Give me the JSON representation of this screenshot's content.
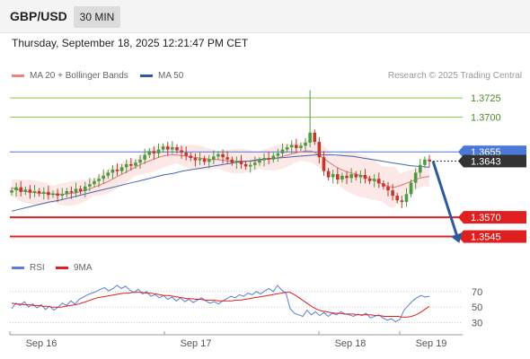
{
  "header": {
    "pair": "GBP/USD",
    "timeframe": "30 MIN"
  },
  "datetime": "Thursday, September 18, 2025 12:21:47 PM CET",
  "legend": [
    {
      "label": "MA 20 + Bollinger Bands",
      "color": "#f08080"
    },
    {
      "label": "MA 50",
      "color": "#2e5a9c"
    }
  ],
  "research": "Research © 2025 Trading Central",
  "rsi_legend": [
    {
      "label": "RSI",
      "color": "#5a7fd6"
    },
    {
      "label": "9MA",
      "color": "#e02020"
    }
  ],
  "colors": {
    "resistance": "#8bc34a",
    "pivot": "#4a78d6",
    "support": "#e02020",
    "current": "#333333",
    "arrow": "#2e5a9c",
    "up_candle": "#4c9a3f",
    "down_candle": "#c0392b"
  },
  "chart_data": [
    {
      "type": "candlestick",
      "title": "",
      "x_labels": [
        "Sep 16",
        "Sep 17",
        "Sep 18",
        "Sep 19"
      ],
      "ylim": [
        1.352,
        1.3745
      ],
      "levels": [
        {
          "value": "1.3725",
          "kind": "resistance"
        },
        {
          "value": "1.3700",
          "kind": "resistance"
        },
        {
          "value": "1.3655",
          "kind": "pivot"
        },
        {
          "value": "1.3643",
          "kind": "current"
        },
        {
          "value": "1.3570",
          "kind": "support"
        },
        {
          "value": "1.3545",
          "kind": "support"
        }
      ],
      "closes": [
        1.3605,
        1.3609,
        1.3603,
        1.3606,
        1.3602,
        1.3604,
        1.3601,
        1.3603,
        1.3599,
        1.3601,
        1.3598,
        1.36,
        1.3604,
        1.3602,
        1.3607,
        1.3604,
        1.361,
        1.3613,
        1.3617,
        1.362,
        1.3624,
        1.3628,
        1.3632,
        1.363,
        1.3635,
        1.3639,
        1.3637,
        1.3641,
        1.3645,
        1.3651,
        1.3656,
        1.3653,
        1.3658,
        1.3662,
        1.3658,
        1.3661,
        1.3657,
        1.3654,
        1.365,
        1.3647,
        1.3644,
        1.3646,
        1.3642,
        1.3645,
        1.3649,
        1.3652,
        1.3648,
        1.3645,
        1.3641,
        1.3643,
        1.3639,
        1.3636,
        1.3638,
        1.3641,
        1.3644,
        1.3647,
        1.3645,
        1.365,
        1.3653,
        1.3658,
        1.3661,
        1.3664,
        1.366,
        1.3663,
        1.3667,
        1.368,
        1.3668,
        1.3648,
        1.363,
        1.3622,
        1.3626,
        1.3619,
        1.3624,
        1.3621,
        1.3626,
        1.3622,
        1.3625,
        1.362,
        1.3617,
        1.362,
        1.3614,
        1.361,
        1.3605,
        1.3598,
        1.3592,
        1.359,
        1.36,
        1.3615,
        1.3628,
        1.3638,
        1.3645,
        1.3643
      ],
      "ma20": [
        1.3608,
        1.3606,
        1.3604,
        1.3603,
        1.3602,
        1.3601,
        1.3601,
        1.36,
        1.36,
        1.36,
        1.3601,
        1.3602,
        1.3604,
        1.3606,
        1.3609,
        1.3612,
        1.3615,
        1.3619,
        1.3623,
        1.3627,
        1.3631,
        1.3635,
        1.3639,
        1.3642,
        1.3645,
        1.3648,
        1.365,
        1.3651,
        1.3651,
        1.365,
        1.3649,
        1.3648,
        1.3647,
        1.3646,
        1.3645,
        1.3645,
        1.3644,
        1.3643,
        1.3643,
        1.3643,
        1.3643,
        1.3643,
        1.3644,
        1.3645,
        1.3646,
        1.3647,
        1.3649,
        1.3651,
        1.3653,
        1.3655,
        1.3656,
        1.3656,
        1.3652,
        1.3647,
        1.3641,
        1.3636,
        1.3632,
        1.3629,
        1.3627,
        1.3625,
        1.3623,
        1.362,
        1.3617,
        1.3613,
        1.361,
        1.3609,
        1.3611,
        1.3614,
        1.3617,
        1.362,
        1.3622,
        1.3623
      ],
      "ma50": [
        1.3578,
        1.3581,
        1.3584,
        1.3587,
        1.359,
        1.3592,
        1.3595,
        1.3598,
        1.3601,
        1.3604,
        1.3607,
        1.361,
        1.3613,
        1.3616,
        1.3619,
        1.3622,
        1.3625,
        1.3627,
        1.363,
        1.3632,
        1.3634,
        1.3636,
        1.3638,
        1.364,
        1.3642,
        1.3643,
        1.3645,
        1.3646,
        1.3647,
        1.3648,
        1.3649,
        1.365,
        1.3651,
        1.3651,
        1.3651,
        1.365,
        1.3649,
        1.3647,
        1.3645,
        1.3643,
        1.3641,
        1.3639,
        1.3637,
        1.3636,
        1.3635
      ]
    },
    {
      "type": "line",
      "title": "",
      "yticks": [
        "70",
        "50",
        "30"
      ],
      "ylim": [
        20,
        85
      ],
      "rsi": [
        48,
        55,
        52,
        57,
        50,
        54,
        49,
        53,
        47,
        51,
        46,
        50,
        55,
        52,
        58,
        54,
        60,
        63,
        66,
        68,
        70,
        73,
        75,
        71,
        74,
        78,
        74,
        77,
        72,
        69,
        73,
        67,
        70,
        64,
        66,
        62,
        65,
        60,
        63,
        58,
        62,
        57,
        60,
        56,
        59,
        62,
        58,
        55,
        57,
        54,
        58,
        61,
        64,
        62,
        66,
        64,
        68,
        66,
        70,
        67,
        71,
        74,
        70,
        78,
        72,
        68,
        48,
        42,
        40,
        38,
        46,
        40,
        44,
        39,
        43,
        38,
        42,
        40,
        44,
        41,
        40,
        38,
        41,
        39,
        42,
        36,
        38,
        40,
        36,
        33,
        35,
        31,
        34,
        46,
        52,
        58,
        62,
        65,
        63,
        64
      ],
      "ma9": [
        55,
        54,
        54,
        53,
        53,
        52,
        52,
        51,
        51,
        50,
        50,
        50,
        51,
        52,
        53,
        54,
        56,
        58,
        60,
        62,
        63,
        64,
        65,
        66,
        67,
        68,
        68,
        69,
        69,
        69,
        68,
        68,
        67,
        66,
        65,
        65,
        64,
        63,
        62,
        61,
        61,
        60,
        60,
        59,
        59,
        59,
        58,
        58,
        58,
        58,
        59,
        59,
        60,
        61,
        62,
        63,
        64,
        65,
        66,
        67,
        68,
        69,
        69,
        66,
        62,
        58,
        54,
        50,
        47,
        45,
        44,
        43,
        42,
        42,
        41,
        41,
        41,
        40,
        40,
        40,
        40,
        39,
        39,
        38,
        38,
        38,
        38,
        37,
        37,
        38,
        40,
        43,
        47,
        51
      ]
    }
  ]
}
